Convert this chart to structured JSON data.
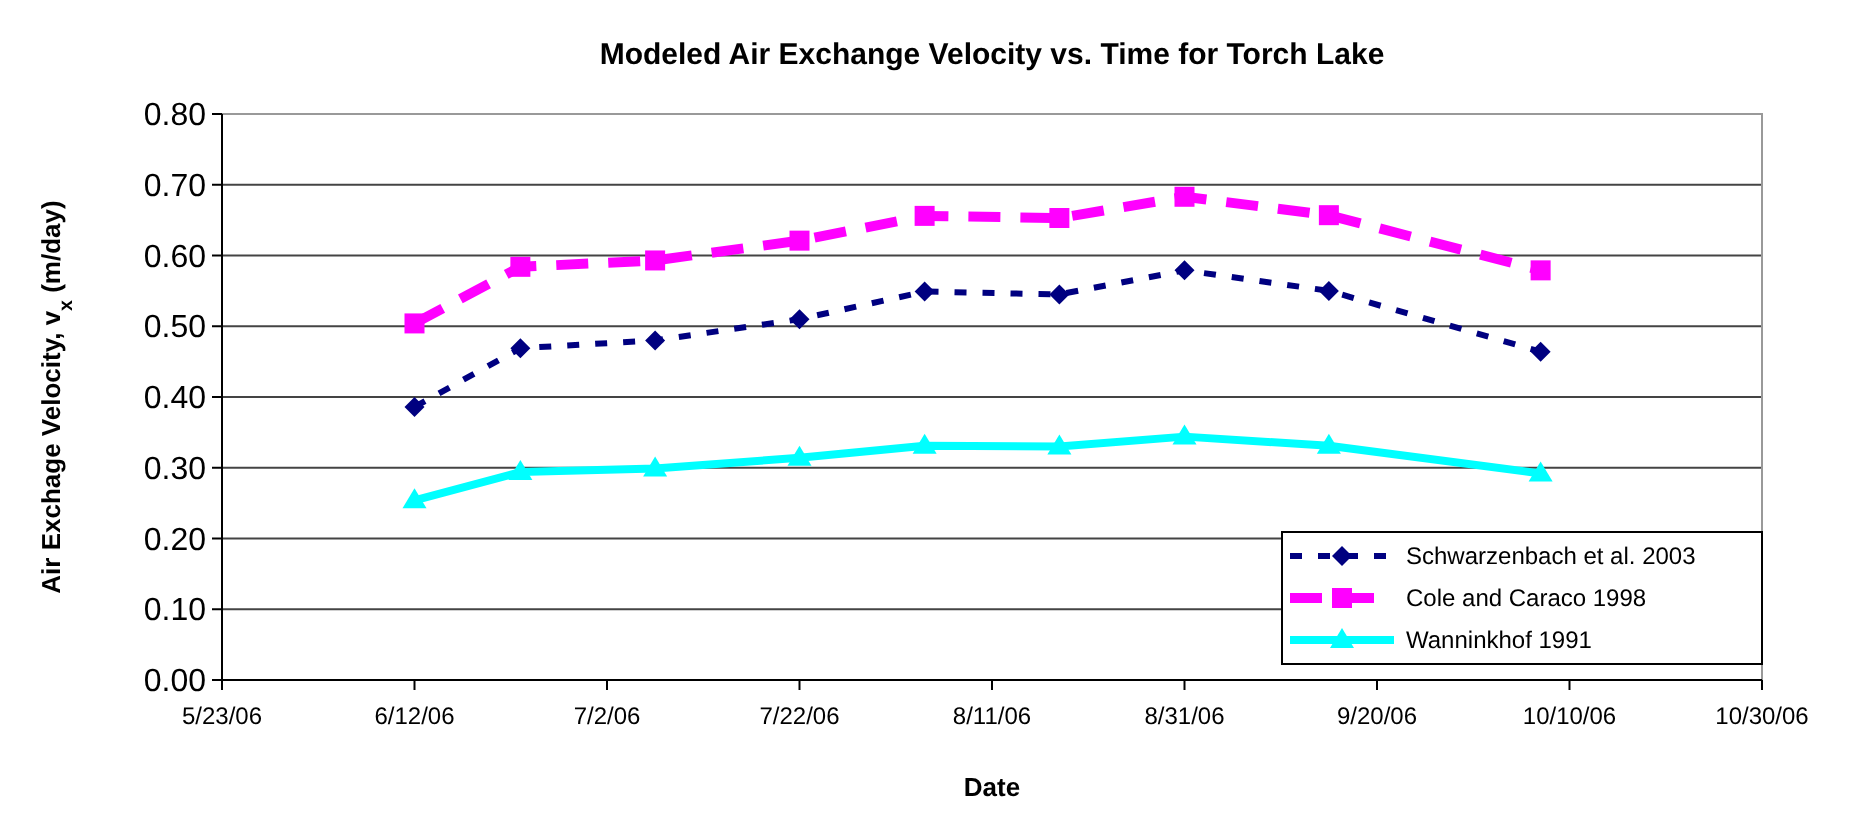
{
  "chart_data": {
    "type": "line",
    "title": "Modeled Air Exchange Velocity vs. Time for Torch Lake",
    "xlabel": "Date",
    "ylabel": "Air Exchage Velocity, v$_{x}$ (m/day)",
    "x": [
      "2006-06-12",
      "2006-06-23",
      "2006-07-07",
      "2006-07-22",
      "2006-08-04",
      "2006-08-18",
      "2006-08-31",
      "2006-09-15",
      "2006-10-07"
    ],
    "series": [
      {
        "name": "Schwarzenbach et al. 2003",
        "color": "#000080",
        "marker": "diamond",
        "line_style": "dotted",
        "values": [
          0.386,
          0.469,
          0.48,
          0.51,
          0.549,
          0.545,
          0.579,
          0.55,
          0.464
        ]
      },
      {
        "name": "Cole and Caraco 1998",
        "color": "#ff00ff",
        "marker": "square",
        "line_style": "dashed",
        "values": [
          0.504,
          0.584,
          0.593,
          0.621,
          0.656,
          0.653,
          0.683,
          0.657,
          0.579
        ]
      },
      {
        "name": "Wanninkhof 1991",
        "color": "#00ffff",
        "marker": "triangle",
        "line_style": "solid",
        "values": [
          0.254,
          0.294,
          0.299,
          0.314,
          0.331,
          0.33,
          0.344,
          0.331,
          0.292
        ]
      }
    ],
    "xlim": [
      "2006-05-23",
      "2006-10-30"
    ],
    "xticks": [
      {
        "value": "2006-05-23",
        "label": "5/23/06"
      },
      {
        "value": "2006-06-12",
        "label": "6/12/06"
      },
      {
        "value": "2006-07-02",
        "label": "7/2/06"
      },
      {
        "value": "2006-07-22",
        "label": "7/22/06"
      },
      {
        "value": "2006-08-11",
        "label": "8/11/06"
      },
      {
        "value": "2006-08-31",
        "label": "8/31/06"
      },
      {
        "value": "2006-09-20",
        "label": "9/20/06"
      },
      {
        "value": "2006-10-10",
        "label": "10/10/06"
      },
      {
        "value": "2006-10-30",
        "label": "10/30/06"
      }
    ],
    "ylim": [
      0,
      0.8
    ],
    "yticks": [
      {
        "value": 0,
        "label": "0.00"
      },
      {
        "value": 0.1,
        "label": "0.10"
      },
      {
        "value": 0.2,
        "label": "0.20"
      },
      {
        "value": 0.3,
        "label": "0.30"
      },
      {
        "value": 0.4,
        "label": "0.40"
      },
      {
        "value": 0.5,
        "label": "0.50"
      },
      {
        "value": 0.6,
        "label": "0.60"
      },
      {
        "value": 0.7,
        "label": "0.70"
      },
      {
        "value": 0.8,
        "label": "0.80"
      }
    ],
    "grid": "y",
    "legend": "bottom right"
  }
}
